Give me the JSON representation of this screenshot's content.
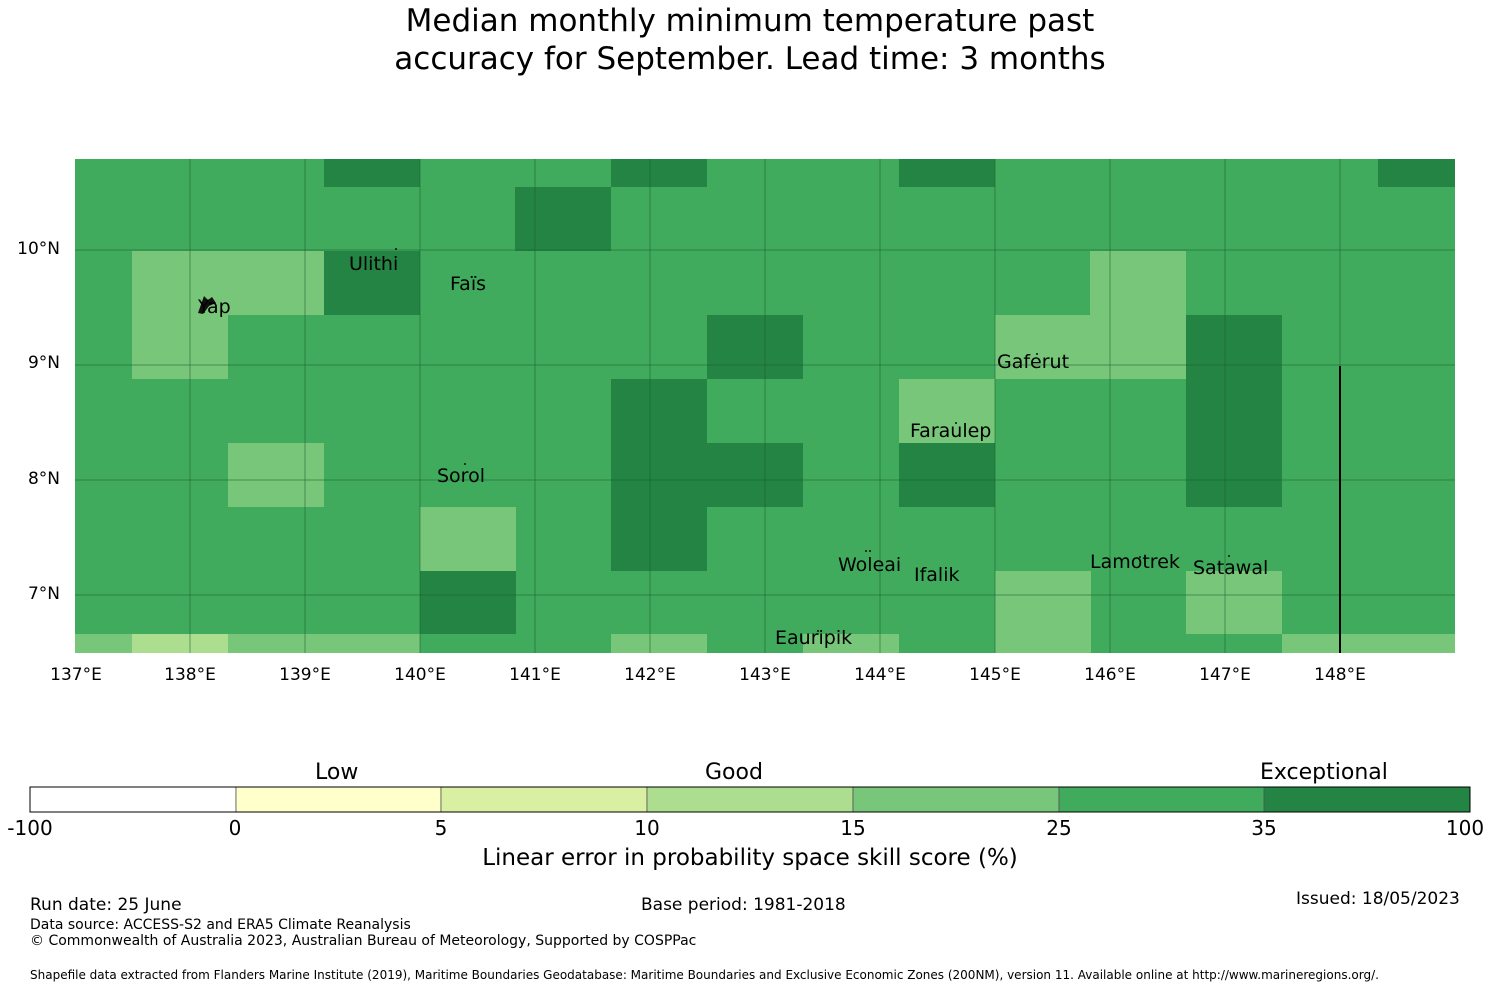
{
  "title": {
    "line1": "Median monthly minimum temperature past",
    "line2": "accuracy for September. Lead time: 3 months"
  },
  "map": {
    "lat_labels": [
      "10°N",
      "9°N",
      "8°N",
      "7°N"
    ],
    "lon_labels": [
      "137°E",
      "138°E",
      "139°E",
      "140°E",
      "141°E",
      "142°E",
      "143°E",
      "144°E",
      "145°E",
      "146°E",
      "147°E",
      "148°E"
    ],
    "places": [
      "Ulithi",
      "Faïs",
      "Yap",
      "Gaferut",
      "Faraulep",
      "Sorol",
      "Woleai",
      "Ifalik",
      "Lamotrek",
      "Satawal",
      "Eauripik"
    ],
    "colors": {
      "exceptional_dark": "#238443",
      "good_high": "#41ab5d",
      "good_mid": "#78c679",
      "good_low": "#addd8e",
      "low_high": "#d9f0a3",
      "low": "#ffffcc"
    }
  },
  "legend": {
    "categories": [
      "Low",
      "Good",
      "Exceptional"
    ],
    "ticks": [
      "-100",
      "0",
      "5",
      "10",
      "15",
      "25",
      "35",
      "100"
    ],
    "bin_colors": [
      "#ffffff",
      "#ffffcc",
      "#d9f0a3",
      "#addd8e",
      "#78c679",
      "#41ab5d",
      "#238443"
    ],
    "title": "Linear error in probability space skill score (%)"
  },
  "footer": {
    "run_date": "Run date: 25 June",
    "base_period": "Base period: 1981-2018",
    "issued": "Issued: 18/05/2023",
    "data_source": "Data source: ACCESS-S2 and ERA5 Climate Reanalysis",
    "copyright": "© Commonwealth of Australia 2023, Australian Bureau of Meteorology, Supported by COSPPac",
    "shapefile": "Shapefile data extracted from Flanders Marine Institute (2019), Maritime Boundaries Geodatabase: Maritime Boundaries and Exclusive Economic Zones (200NM), version 11. Available online at http://www.marineregions.org/."
  }
}
